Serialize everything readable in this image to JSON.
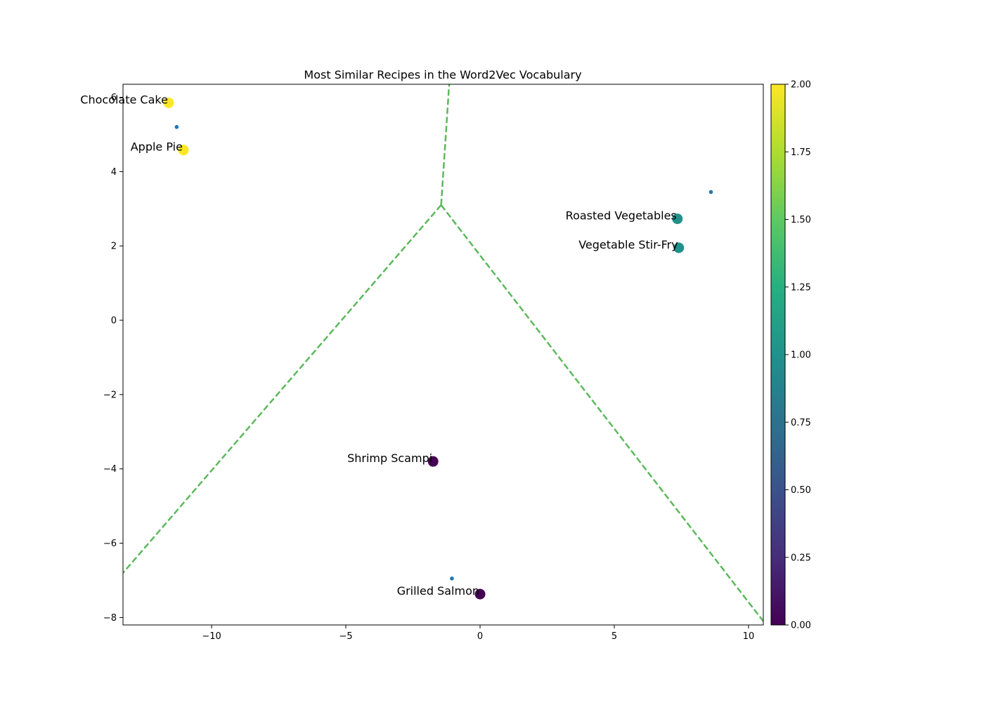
{
  "chart_data": {
    "type": "scatter",
    "title": "Most Similar Recipes in the Word2Vec Vocabulary",
    "xlabel": "",
    "ylabel": "",
    "xlim": [
      -13.3,
      10.55
    ],
    "ylim": [
      -8.2,
      6.35
    ],
    "x_ticks": [
      -10,
      -5,
      0,
      5,
      10
    ],
    "y_ticks": [
      -8,
      -6,
      -4,
      -2,
      0,
      2,
      4,
      6
    ],
    "x_tick_labels": [
      "−10",
      "−5",
      "0",
      "5",
      "10"
    ],
    "y_tick_labels": [
      "−8",
      "−6",
      "−4",
      "−2",
      "0",
      "2",
      "4",
      "6"
    ],
    "grid": false,
    "recipes": [
      {
        "label": "Chocolate Cake",
        "x": -11.6,
        "y": 5.85,
        "cluster": 2
      },
      {
        "label": "Apple Pie",
        "x": -11.05,
        "y": 4.58,
        "cluster": 2
      },
      {
        "label": "Roasted Vegetables",
        "x": 7.35,
        "y": 2.73,
        "cluster": 1
      },
      {
        "label": "Vegetable Stir-Fry",
        "x": 7.4,
        "y": 1.95,
        "cluster": 1
      },
      {
        "label": "Shrimp Scampi",
        "x": -1.75,
        "y": -3.8,
        "cluster": 0
      },
      {
        "label": "Grilled Salmon",
        "x": 0.0,
        "y": -7.37,
        "cluster": 0
      }
    ],
    "centroids": [
      {
        "x": -11.3,
        "y": 5.2
      },
      {
        "x": 8.6,
        "y": 3.45
      },
      {
        "x": -1.05,
        "y": -6.95
      }
    ],
    "centroid_color": "#1f77b4",
    "boundaries": {
      "color": "#5cb85c",
      "style": "dashed",
      "segments": [
        [
          [
            -1.45,
            3.1
          ],
          [
            -1.15,
            6.35
          ]
        ],
        [
          [
            -1.45,
            3.1
          ],
          [
            -13.3,
            -6.8
          ]
        ],
        [
          [
            -1.45,
            3.1
          ],
          [
            10.55,
            -8.1
          ]
        ]
      ]
    },
    "colorbar": {
      "colormap": "viridis",
      "min": 0.0,
      "max": 2.0,
      "ticks": [
        "0.00",
        "0.25",
        "0.50",
        "0.75",
        "1.00",
        "1.25",
        "1.50",
        "1.75",
        "2.00"
      ]
    }
  }
}
